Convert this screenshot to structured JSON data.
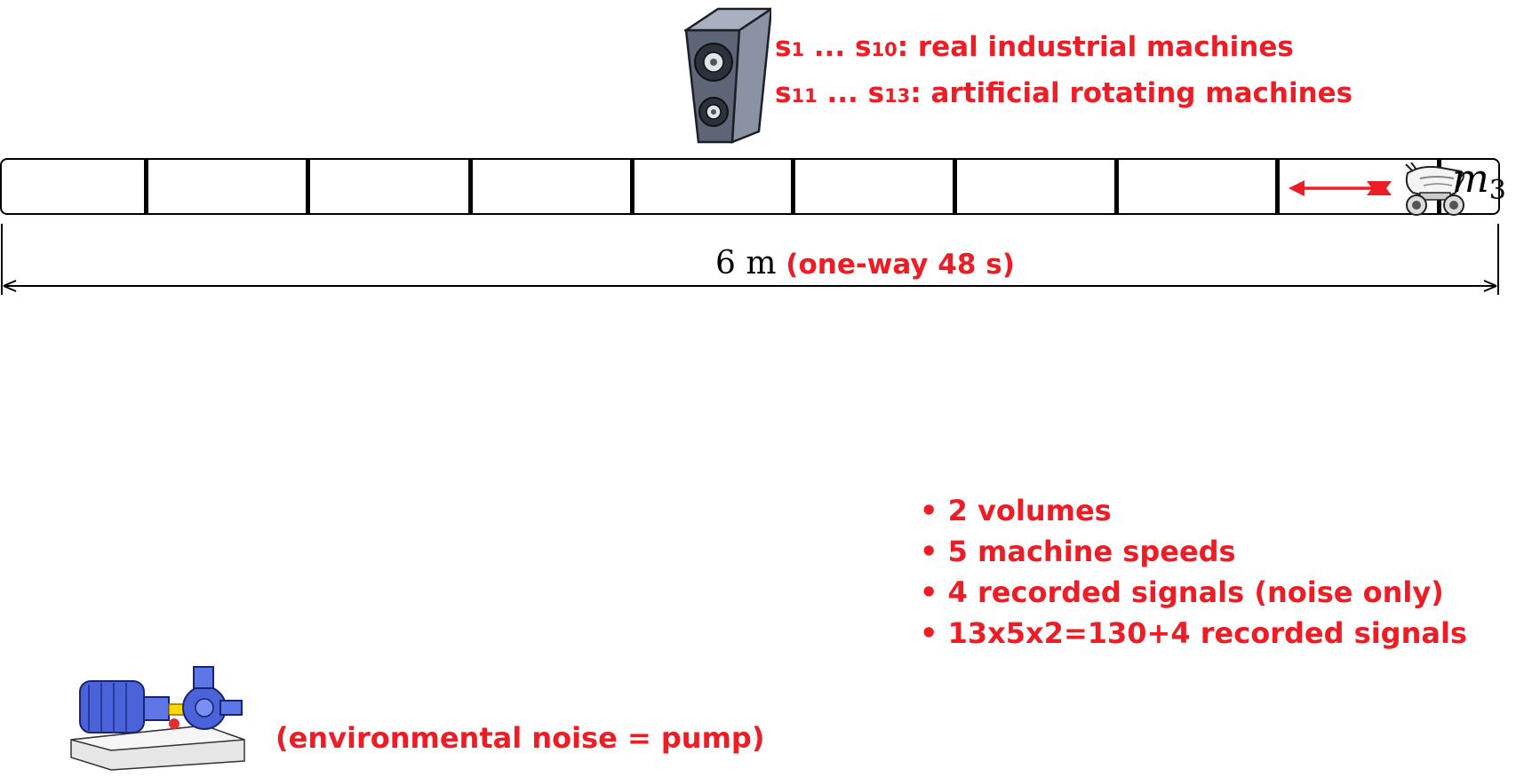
{
  "header": {
    "sources_line1_start": "s",
    "sources_line1_sub_a": "1",
    "sources_line1_mid": " ... s",
    "sources_line1_sub_b": "10",
    "sources_line1_text": ": real industrial machines",
    "sources_line2_start": "s",
    "sources_line2_sub_a": "11",
    "sources_line2_mid": " ... s",
    "sources_line2_sub_b": "13",
    "sources_line2_text": ": artificial rotating machines"
  },
  "track": {
    "segments": 10,
    "robot_label_base": "m",
    "robot_label_sub": "3"
  },
  "distance": {
    "value": "6 m",
    "timing": "(one-way 48 s)"
  },
  "notes": [
    "• 2 volumes",
    "• 5 machine speeds",
    "• 4 recorded signals (noise only)",
    "• 13x5x2=130+4 recorded signals"
  ],
  "pump": {
    "label": "(environmental noise = pump)"
  },
  "colors": {
    "accent_red": "#ee1c25",
    "speaker_body": "#5d6577",
    "pump_blue": "#4a63d8"
  },
  "icons": [
    "speaker-icon",
    "robot-icon",
    "pump-icon",
    "direction-arrow-icon"
  ]
}
